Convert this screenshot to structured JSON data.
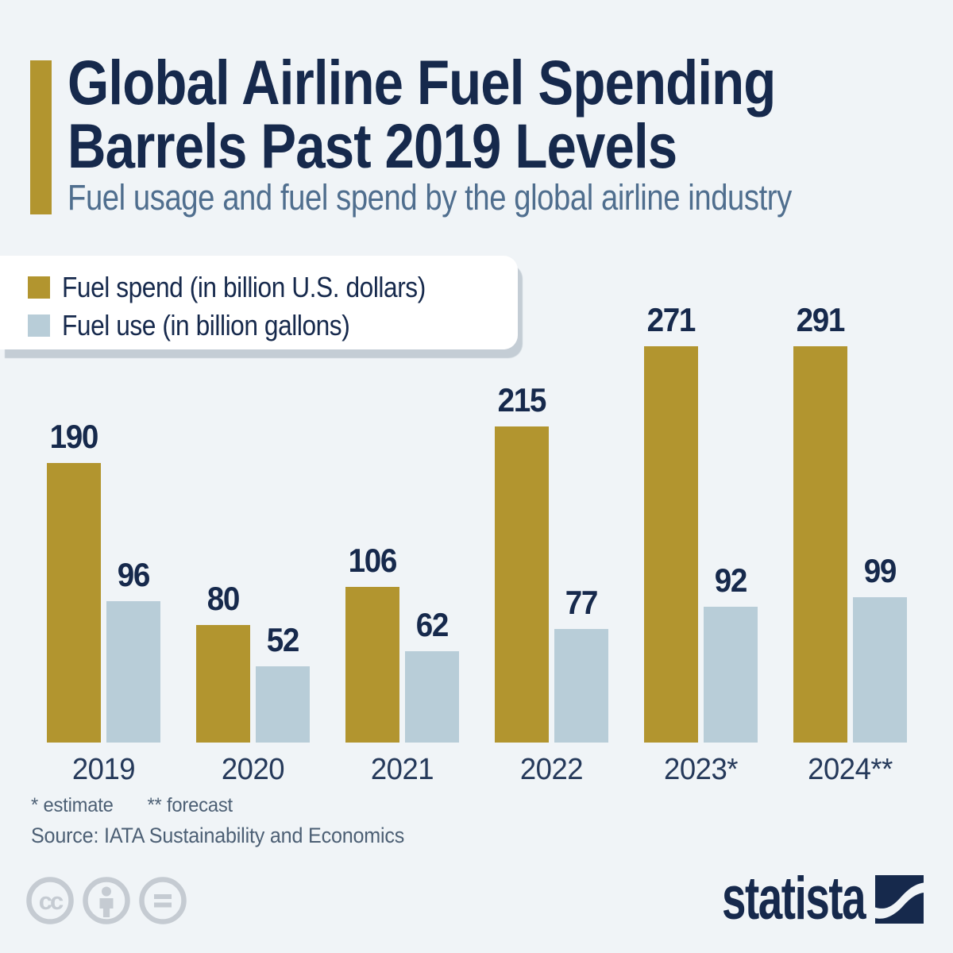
{
  "header": {
    "title_line1": "Global Airline Fuel Spending",
    "title_line2": "Barrels Past 2019 Levels",
    "subtitle": "Fuel usage and fuel spend by the global airline industry"
  },
  "legend": {
    "items": [
      {
        "label": "Fuel spend (in billion U.S. dollars)",
        "color": "#b2952f"
      },
      {
        "label": "Fuel use (in billion gallons)",
        "color": "#b8cdd8"
      }
    ]
  },
  "chart_data": {
    "type": "bar",
    "title": "Global Airline Fuel Spending Barrels Past 2019 Levels",
    "subtitle": "Fuel usage and fuel spend by the global airline industry",
    "categories": [
      "2019",
      "2020",
      "2021",
      "2022",
      "2023*",
      "2024**"
    ],
    "series": [
      {
        "name": "Fuel spend (in billion U.S. dollars)",
        "color": "#b2952f",
        "values": [
          190,
          80,
          106,
          215,
          271,
          291
        ]
      },
      {
        "name": "Fuel use (in billion gallons)",
        "color": "#b8cdd8",
        "values": [
          96,
          52,
          62,
          77,
          92,
          99
        ]
      }
    ],
    "xlabel": "",
    "ylabel": "",
    "ylim": [
      0,
      300
    ],
    "grid": false,
    "axis_lines": false,
    "legend_position": "top-left",
    "value_labels": true
  },
  "footnotes": {
    "estimate": "* estimate",
    "forecast": "** forecast"
  },
  "source": "Source: IATA Sustainability and Economics",
  "branding": {
    "wordmark": "statista"
  },
  "license_icons": [
    {
      "name": "cc-icon",
      "glyph": "cc"
    },
    {
      "name": "attribution-icon",
      "glyph": "person"
    },
    {
      "name": "equals-icon",
      "glyph": "="
    }
  ],
  "colors": {
    "background": "#f0f4f7",
    "accent_gold": "#b2952f",
    "light_blue": "#b8cdd8",
    "navy": "#16294c",
    "subtitle_blue": "#4f6e8e",
    "muted_text": "#4c5f74",
    "icon_gray": "#c5cbd2",
    "legend_shadow": "#c4cdd5"
  }
}
